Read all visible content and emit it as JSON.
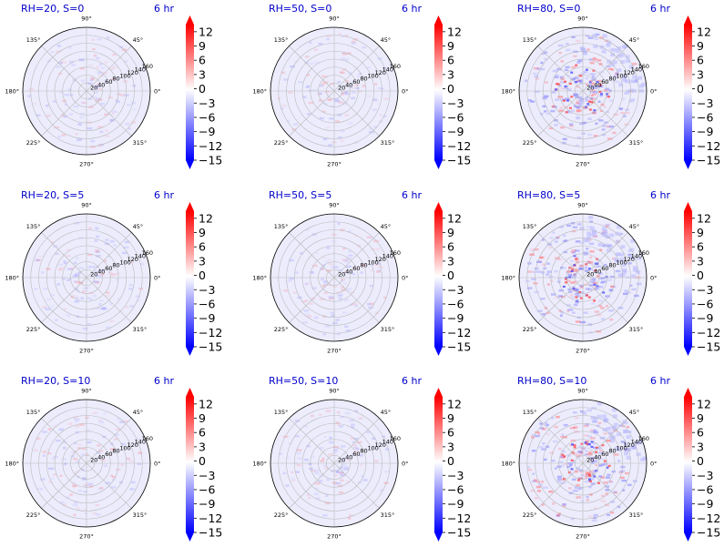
{
  "figure": {
    "colormap": "bwr",
    "accent_color": "#0000cc",
    "colorbar_ticks": [
      "12",
      "9",
      "6",
      "3",
      "0",
      "−3",
      "−6",
      "−9",
      "−12",
      "−15"
    ]
  },
  "chart_data": [
    {
      "type": "heatmap",
      "projection": "polar",
      "title_left": "RH=20, S=0",
      "title_right": "6 hr",
      "angle_labels": [
        "90°",
        "45°",
        "0°",
        "315°",
        "270°",
        "225°",
        "180°",
        "135°"
      ],
      "radial_ticks": [
        "20",
        "40",
        "60",
        "80",
        "100",
        "120",
        "140",
        "160"
      ],
      "rlim": [
        0,
        160
      ],
      "clim": [
        -15,
        13.5
      ],
      "colorbar_ticks": [
        12,
        9,
        6,
        3,
        0,
        -3,
        -6,
        -9,
        -12,
        -15
      ],
      "grid": true,
      "intensity": 0.25
    },
    {
      "type": "heatmap",
      "projection": "polar",
      "title_left": "RH=50, S=0",
      "title_right": "6 hr",
      "angle_labels": [
        "90°",
        "45°",
        "0°",
        "315°",
        "270°",
        "225°",
        "180°",
        "135°"
      ],
      "radial_ticks": [
        "20",
        "40",
        "60",
        "80",
        "100",
        "120",
        "140",
        "160"
      ],
      "rlim": [
        0,
        160
      ],
      "clim": [
        -15,
        13.5
      ],
      "colorbar_ticks": [
        12,
        9,
        6,
        3,
        0,
        -3,
        -6,
        -9,
        -12,
        -15
      ],
      "grid": true,
      "intensity": 0.25
    },
    {
      "type": "heatmap",
      "projection": "polar",
      "title_left": "RH=80, S=0",
      "title_right": "6 hr",
      "angle_labels": [
        "90°",
        "45°",
        "0°",
        "315°",
        "270°",
        "225°",
        "180°",
        "135°"
      ],
      "radial_ticks": [
        "20",
        "40",
        "60",
        "80",
        "100",
        "120",
        "140",
        "160"
      ],
      "rlim": [
        0,
        160
      ],
      "clim": [
        -15,
        13.5
      ],
      "colorbar_ticks": [
        12,
        9,
        6,
        3,
        0,
        -3,
        -6,
        -9,
        -12,
        -15
      ],
      "grid": true,
      "intensity": 0.7
    },
    {
      "type": "heatmap",
      "projection": "polar",
      "title_left": "RH=20, S=5",
      "title_right": "6 hr",
      "angle_labels": [
        "90°",
        "45°",
        "0°",
        "315°",
        "270°",
        "225°",
        "180°",
        "135°"
      ],
      "radial_ticks": [
        "20",
        "40",
        "60",
        "80",
        "100",
        "120",
        "140",
        "160"
      ],
      "rlim": [
        0,
        160
      ],
      "clim": [
        -15,
        13.5
      ],
      "colorbar_ticks": [
        12,
        9,
        6,
        3,
        0,
        -3,
        -6,
        -9,
        -12,
        -15
      ],
      "grid": true,
      "intensity": 0.25
    },
    {
      "type": "heatmap",
      "projection": "polar",
      "title_left": "RH=50, S=5",
      "title_right": "6 hr",
      "angle_labels": [
        "90°",
        "45°",
        "0°",
        "315°",
        "270°",
        "225°",
        "180°",
        "135°"
      ],
      "radial_ticks": [
        "20",
        "40",
        "60",
        "80",
        "100",
        "120",
        "140",
        "160"
      ],
      "rlim": [
        0,
        160
      ],
      "clim": [
        -15,
        13.5
      ],
      "colorbar_ticks": [
        12,
        9,
        6,
        3,
        0,
        -3,
        -6,
        -9,
        -12,
        -15
      ],
      "grid": true,
      "intensity": 0.25
    },
    {
      "type": "heatmap",
      "projection": "polar",
      "title_left": "RH=80, S=5",
      "title_right": "6 hr",
      "angle_labels": [
        "90°",
        "45°",
        "0°",
        "315°",
        "270°",
        "225°",
        "180°",
        "135°"
      ],
      "radial_ticks": [
        "20",
        "40",
        "60",
        "80",
        "100",
        "120",
        "140",
        "160"
      ],
      "rlim": [
        0,
        160
      ],
      "clim": [
        -15,
        13.5
      ],
      "colorbar_ticks": [
        12,
        9,
        6,
        3,
        0,
        -3,
        -6,
        -9,
        -12,
        -15
      ],
      "grid": true,
      "intensity": 0.7
    },
    {
      "type": "heatmap",
      "projection": "polar",
      "title_left": "RH=20, S=10",
      "title_right": "6 hr",
      "angle_labels": [
        "90°",
        "45°",
        "0°",
        "315°",
        "270°",
        "225°",
        "180°",
        "135°"
      ],
      "radial_ticks": [
        "20",
        "40",
        "60",
        "80",
        "100",
        "120",
        "140",
        "160"
      ],
      "rlim": [
        0,
        160
      ],
      "clim": [
        -15,
        13.5
      ],
      "colorbar_ticks": [
        12,
        9,
        6,
        3,
        0,
        -3,
        -6,
        -9,
        -12,
        -15
      ],
      "grid": true,
      "intensity": 0.25
    },
    {
      "type": "heatmap",
      "projection": "polar",
      "title_left": "RH=50, S=10",
      "title_right": "6 hr",
      "angle_labels": [
        "90°",
        "45°",
        "0°",
        "315°",
        "270°",
        "225°",
        "180°",
        "135°"
      ],
      "radial_ticks": [
        "20",
        "40",
        "60",
        "80",
        "100",
        "120",
        "140",
        "160"
      ],
      "rlim": [
        0,
        160
      ],
      "clim": [
        -15,
        13.5
      ],
      "colorbar_ticks": [
        12,
        9,
        6,
        3,
        0,
        -3,
        -6,
        -9,
        -12,
        -15
      ],
      "grid": true,
      "intensity": 0.25
    },
    {
      "type": "heatmap",
      "projection": "polar",
      "title_left": "RH=80, S=10",
      "title_right": "6 hr",
      "angle_labels": [
        "90°",
        "45°",
        "0°",
        "315°",
        "270°",
        "225°",
        "180°",
        "135°"
      ],
      "radial_ticks": [
        "20",
        "40",
        "60",
        "80",
        "100",
        "120",
        "140",
        "160"
      ],
      "rlim": [
        0,
        160
      ],
      "clim": [
        -15,
        13.5
      ],
      "colorbar_ticks": [
        12,
        9,
        6,
        3,
        0,
        -3,
        -6,
        -9,
        -12,
        -15
      ],
      "grid": true,
      "intensity": 0.7
    }
  ]
}
